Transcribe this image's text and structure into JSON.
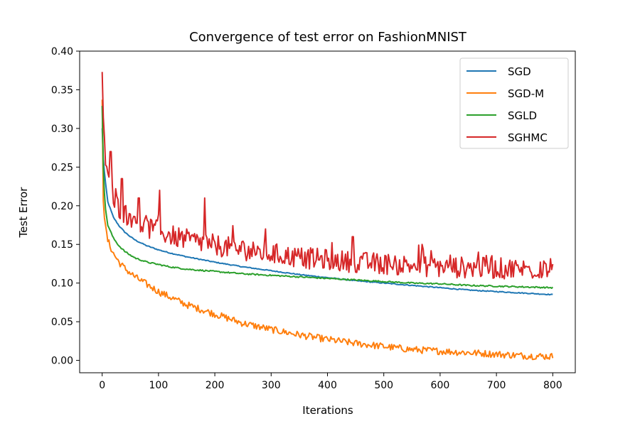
{
  "chart_data": {
    "type": "line",
    "title": "Convergence of test error on FashionMNIST",
    "xlabel": "Iterations",
    "ylabel": "Test Error",
    "xlim": [
      -40,
      840
    ],
    "ylim": [
      -0.016,
      0.4
    ],
    "xticks": [
      0,
      100,
      200,
      300,
      400,
      500,
      600,
      700,
      800
    ],
    "xtick_labels": [
      "0",
      "100",
      "200",
      "300",
      "400",
      "500",
      "600",
      "700",
      "800"
    ],
    "yticks": [
      0.0,
      0.05,
      0.1,
      0.15,
      0.2,
      0.25,
      0.3,
      0.35,
      0.4
    ],
    "ytick_labels": [
      "0.00",
      "0.05",
      "0.10",
      "0.15",
      "0.20",
      "0.25",
      "0.30",
      "0.35",
      "0.40"
    ],
    "grid": false,
    "legend_position": "top-right",
    "series": [
      {
        "name": "SGD",
        "color": "#1f77b4",
        "x": [
          0,
          2,
          5,
          10,
          20,
          30,
          40,
          50,
          60,
          80,
          100,
          120,
          150,
          200,
          250,
          300,
          350,
          400,
          450,
          500,
          550,
          600,
          650,
          700,
          750,
          800
        ],
        "y": [
          0.3,
          0.26,
          0.235,
          0.205,
          0.185,
          0.174,
          0.166,
          0.16,
          0.155,
          0.148,
          0.143,
          0.139,
          0.134,
          0.127,
          0.121,
          0.116,
          0.111,
          0.107,
          0.103,
          0.1,
          0.097,
          0.094,
          0.091,
          0.089,
          0.087,
          0.085
        ]
      },
      {
        "name": "SGD-M",
        "color": "#ff7f0e",
        "x": [
          0,
          2,
          5,
          10,
          20,
          30,
          40,
          50,
          60,
          80,
          100,
          120,
          150,
          200,
          250,
          300,
          350,
          400,
          450,
          500,
          550,
          600,
          650,
          700,
          750,
          800
        ],
        "y": [
          0.34,
          0.21,
          0.175,
          0.155,
          0.138,
          0.127,
          0.119,
          0.113,
          0.107,
          0.098,
          0.089,
          0.082,
          0.072,
          0.06,
          0.048,
          0.04,
          0.033,
          0.027,
          0.022,
          0.018,
          0.014,
          0.012,
          0.01,
          0.008,
          0.006,
          0.005
        ]
      },
      {
        "name": "SGLD",
        "color": "#2ca02c",
        "x": [
          0,
          2,
          5,
          10,
          20,
          30,
          40,
          50,
          60,
          80,
          100,
          120,
          150,
          200,
          250,
          300,
          350,
          400,
          450,
          500,
          550,
          600,
          650,
          700,
          750,
          800
        ],
        "y": [
          0.33,
          0.25,
          0.2,
          0.175,
          0.158,
          0.148,
          0.141,
          0.136,
          0.132,
          0.127,
          0.124,
          0.121,
          0.118,
          0.115,
          0.112,
          0.11,
          0.108,
          0.106,
          0.104,
          0.102,
          0.1,
          0.099,
          0.097,
          0.096,
          0.095,
          0.094
        ]
      },
      {
        "name": "SGHMC",
        "color": "#d62728",
        "x": [
          0,
          2,
          5,
          10,
          20,
          30,
          40,
          50,
          60,
          80,
          100,
          120,
          150,
          200,
          250,
          300,
          350,
          400,
          450,
          500,
          550,
          600,
          650,
          700,
          750,
          800
        ],
        "y": [
          0.38,
          0.31,
          0.26,
          0.235,
          0.21,
          0.198,
          0.19,
          0.185,
          0.18,
          0.172,
          0.167,
          0.162,
          0.156,
          0.149,
          0.143,
          0.138,
          0.133,
          0.13,
          0.127,
          0.125,
          0.123,
          0.121,
          0.12,
          0.119,
          0.118,
          0.118
        ],
        "spikes": [
          [
            15,
            0.27
          ],
          [
            35,
            0.235
          ],
          [
            65,
            0.21
          ],
          [
            102,
            0.22
          ],
          [
            182,
            0.21
          ],
          [
            290,
            0.17
          ],
          [
            445,
            0.16
          ],
          [
            568,
            0.15
          ],
          [
            668,
            0.14
          ]
        ]
      }
    ]
  }
}
